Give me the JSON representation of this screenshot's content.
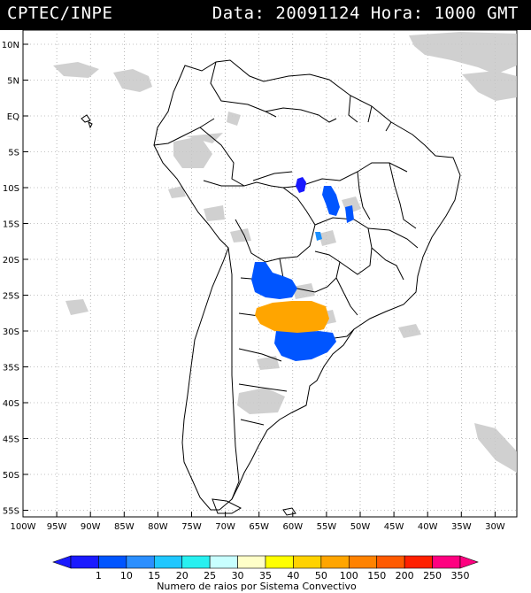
{
  "header": {
    "title": "CPTEC/INPE",
    "stamp": "Data: 20091124 Hora: 1000 GMT"
  },
  "lat_labels": [
    "10N",
    "5N",
    "EQ",
    "5S",
    "10S",
    "15S",
    "20S",
    "25S",
    "30S",
    "35S",
    "40S",
    "45S",
    "50S",
    "55S"
  ],
  "lon_labels": [
    "100W",
    "95W",
    "90W",
    "85W",
    "80W",
    "75W",
    "70W",
    "65W",
    "60W",
    "55W",
    "50W",
    "45W",
    "40W",
    "35W",
    "30W"
  ],
  "colorbar": {
    "title": "Numero de raios por Sistema Convectivo",
    "values": [
      "1",
      "10",
      "15",
      "20",
      "25",
      "30",
      "35",
      "40",
      "50",
      "100",
      "150",
      "200",
      "250",
      "350"
    ],
    "colors": [
      "#1a1aff",
      "#0055ff",
      "#2b8fff",
      "#1fc7ff",
      "#28f0f0",
      "#c8ffff",
      "#ffffc8",
      "#ffff00",
      "#ffd200",
      "#ffa500",
      "#ff8200",
      "#ff5a00",
      "#ff2000",
      "#ff0080"
    ]
  }
}
